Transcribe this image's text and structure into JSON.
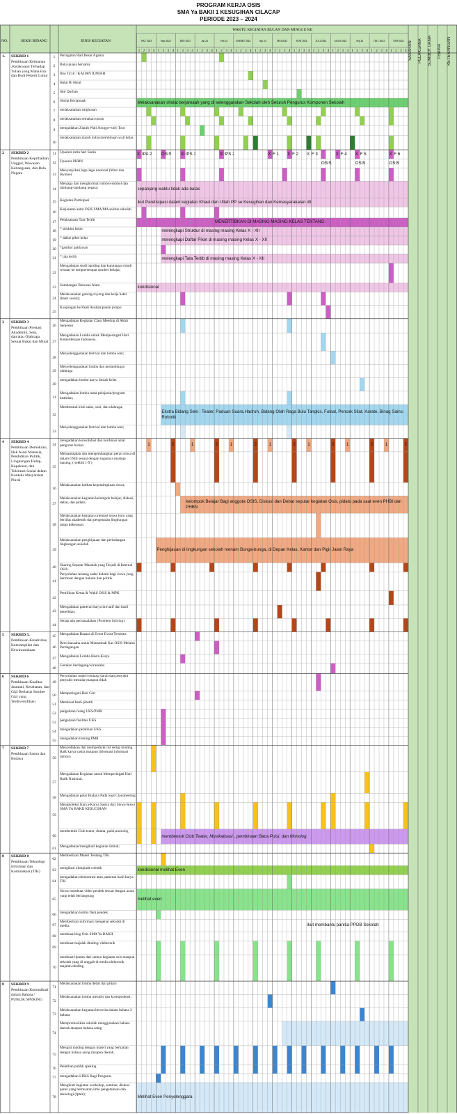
{
  "title": {
    "line1": "PROGRAM KERJA OSIS",
    "line2": "SMA Ya BAKII 1 KESUGIHAN CILACAP",
    "line3": "PERIODE 2023 – 2024"
  },
  "headers": {
    "no": "NO.",
    "seksi": "SEKSI BIDANG",
    "kegiatan": "JENIS KEGIATAN",
    "waktu": "WAKTU KEGIATAN BULAN DAN MINGGU KE",
    "right": [
      "SASARAN",
      "PELAKSANA",
      "SUMBER DANA",
      "TEMPAT",
      "KETERANGAN"
    ]
  },
  "months": [
    "OKT 2023",
    "Sept 2023",
    "DES 2023",
    "Jan 24",
    "Feb 24",
    "MARET 2024",
    "Apr 24",
    "MEI 2024",
    "JUNI 2024",
    "JULI 2024",
    "AGUS 2024",
    "Sep 24",
    "OKT 2024",
    "NOP 2024"
  ],
  "week_numbers": [
    "1",
    "2",
    "3",
    "4"
  ],
  "sections": [
    {
      "no": "1.",
      "code": "SEKBID 1",
      "desc": "Pembinaan Keimanan ,Ketakwaan Terhadap Tuhan yang Maha Esa dan Budi Pekerti Luhur"
    },
    {
      "no": "2",
      "code": "SEKBID 2",
      "desc": "Pembinaan Kepribadian Unggul, Wawasan Kebangsaan, dan Bela Negara"
    },
    {
      "no": "3",
      "code": "SEKBID 3",
      "desc": "Pembinaan Prestasi Akademik, Seni, dan/atau Olahraga Sesuai Bakat dan Minat"
    },
    {
      "no": "4",
      "code": "SEKBID 4",
      "desc": "Pembinaan Demokrasi, Hak Asasi Manusia, Pendidikan Politik, Lingkungan Hidup, Kepekaan, dan Toleransi Sosial dalam Konteks Masyarakat Plural"
    },
    {
      "no": "5",
      "code": "SEKBID 5.",
      "desc": "Pembinaan Kreativitas, Keterampilan dan Kewirausahaan"
    },
    {
      "no": "6",
      "code": "SEKBID 6",
      "desc": "Pembinaan Kualitas Jasmani, Kesehatan, dan Gizi Berbasis Sumber Gizi yang Terdiversifikasi"
    },
    {
      "no": "7",
      "code": "SEKBID 7",
      "desc": "Pembinaan Sastra dan Budaya"
    },
    {
      "no": "8",
      "code": "SEKBID 8",
      "desc": "Pembinaan Teknologi Informasi dan Komunikasi (TIK)"
    },
    {
      "no": "8",
      "code": "SEKBID 9",
      "desc": "Pembinaan Komunikasi dalam Bahasa / PUBLIK SPEKING"
    }
  ],
  "activities": [
    {
      "no": "1",
      "text": "Peringatan Hari Besar Agama"
    },
    {
      "no": "2",
      "text": "Buka puasa bersama"
    },
    {
      "no": "3",
      "text": "Ibas Ta'zil / KAJIAN ILMIAH"
    },
    {
      "no": "4",
      "text": "Halal Bi Halal"
    },
    {
      "no": "5",
      "text": "Idul Qurban"
    },
    {
      "no": "6",
      "text": "Sholat Berjamaah"
    },
    {
      "no": "7",
      "text": "melaksanakan istighosah"
    },
    {
      "no": "8",
      "text": "melaksanakan semakan quran"
    },
    {
      "no": "9",
      "text": "mengadakan Ziarah Wali Songgo+stdy Tour"
    },
    {
      "no": "10",
      "text": "melaksanakan ziaroh kubur/pembinaan wali kelas"
    },
    {
      "no": "11",
      "text": "Upacara rutin hari Senin"
    },
    {
      "no": "12",
      "text": "Upacara PHBN"
    },
    {
      "no": "13",
      "text": "Menyanyikan lagu-lagu nasional (Mars dan Hymne)"
    },
    {
      "no": "14",
      "text": "Menjaga dan menghormati simbol-simbol dan lambang-lambang negara;"
    },
    {
      "no": "15",
      "text": "Kegiatan Partisipasi"
    },
    {
      "no": "16",
      "text": "Kerjasama antar OSIS SMA/MA sekitar sekolah"
    },
    {
      "no": "17",
      "text": "Pelaksanaan Tata Tertib"
    },
    {
      "no": "18",
      "text": "*  struktur kelas"
    },
    {
      "no": "19",
      "text": "* daftar piket kelas"
    },
    {
      "no": "20",
      "text": "*gambar pahlawan"
    },
    {
      "no": "21",
      "text": "* tata tertib"
    },
    {
      "no": "22",
      "text": "Mengadakan studi banding dan kunjungan (studi wisata) ke tempat-tempat sumber belajar;"
    },
    {
      "no": "23",
      "text": "Sumbangan Bencana Alam"
    },
    {
      "no": "24",
      "text": "Melaksanakan gotong-royong dan kerja bakti (bakti sosial);"
    },
    {
      "no": "25",
      "text": "Kunjungan ke Panti Asuhan/pantai jompo"
    },
    {
      "no": "26",
      "text": "Mengadakan Kegiatan Class Meeting di Akhir Semester"
    },
    {
      "no": "27",
      "text": "Mengadakan Lomba untuk Memperingati Hari Kemerdekaan Indonesia."
    },
    {
      "no": "28",
      "text": "Menyelenggarakan festival dan lomba seni;"
    },
    {
      "no": "29",
      "text": "Menyelenggarakan lomba dan pertandingan olahraga"
    },
    {
      "no": "30",
      "text": "mengadakan lomba karya ilmiah kelas"
    },
    {
      "no": "31",
      "text": "Mengadakan lomba mata pelajaran/program keahlian;"
    },
    {
      "no": "32",
      "text": "Membentuk klub sains, seni, dan olahraga;"
    },
    {
      "no": "33",
      "text": "Menyelenggarakan festival dan lomba seni;"
    },
    {
      "no": "34",
      "text": "mengadakan konsolidasi dan kordinasi antar pengurus harian"
    },
    {
      "no": "35",
      "text": "Memantapkan dan mengembangkan peran siswa di dalam OSIS sesuai dengan tugasnya masing-masing; ( sekbid 1-9 )"
    },
    {
      "no": "36",
      "text": "Melaksanakan latihan kepemimpinan siswa;"
    },
    {
      "no": "37",
      "text": "Melaksanakan kegiatan kelompok belajar, diskusi, debat, dan pidato;"
    },
    {
      "no": "38",
      "text": "Melaksanakan kegiatan orientasi siswa baru yang bersifat akademik dan pengenalan lingkungan tanpa kekerasan"
    },
    {
      "no": "39",
      "text": "Melaksanakan penghijauan dan perindangan lingkungan sekolah"
    },
    {
      "no": "40",
      "text": "Sharing Seputar Masalah yang Terjadi di Internal OSIS."
    },
    {
      "no": "41",
      "text": "Penyuluhan tentang sadar hukum bagi siswa yang berminat dengan hukum dan politik"
    },
    {
      "no": "42",
      "text": "Pemilihan Ketua & Wakil OSIS  & MPK"
    },
    {
      "no": "43",
      "text": "Mengadakan pameran karya inovatif dan hasil penelitian;"
    },
    {
      "no": "44",
      "text": "Setiap ada  permasalahan (Problem Solving)"
    },
    {
      "no": "45",
      "text": "Mengadakan Bazaar di Event Event Tertentu."
    },
    {
      "no": "46",
      "text": "Berwirausaha untuk  Menambah Kas OSIS Melalui Perdagangan"
    },
    {
      "no": "47",
      "text": "Mengadakan Lomba Hasta  Karya"
    },
    {
      "no": "48",
      "text": "Gerakan berdagang/wirausaha"
    },
    {
      "no": "49",
      "text": "Penyuluhan materi tentang darah dan  penyakit penyakit menular maupun tidak"
    },
    {
      "no": "50",
      "text": "Memperingati  Hari Gizi"
    },
    {
      "no": "51",
      "text": "Membuat bank plastik"
    },
    {
      "no": "52",
      "text": "pengadaan  ruang UKS/PMR"
    },
    {
      "no": "53",
      "text": "pengadaan fasilitas UKS"
    },
    {
      "no": "54",
      "text": "mengadakan pelatihan UKS"
    },
    {
      "no": "55",
      "text": "mengadakan trening PMR"
    },
    {
      "no": "56",
      "text": "Menyediakan dan memperbaiki isi setiap mading. Baik karya sastra maupun informasi informasi lainnya"
    },
    {
      "no": "57",
      "text": "Mengadakan Kegiatan untuk Memperingati Hari Batik Nasional."
    },
    {
      "no": "58",
      "text": "Mengadakan gelar Budaya  Pada Saat  Classmeeting"
    },
    {
      "no": "59",
      "text": "Mengkoleksi Karya-Karya Sastra dari Siswa-Siswi SMA YA BAKII KESUGIHAN"
    },
    {
      "no": "60",
      "text": "membentuk Club teater, drama, puisi,monolog"
    },
    {
      "no": "61",
      "text": "Mengadakan/mengikuti kegiatan ilmiah;"
    },
    {
      "no": "62",
      "text": "Memberikan Materi Tentang TIK."
    },
    {
      "no": "63",
      "text": "mengikuti olimpiade robotik"
    },
    {
      "no": "64",
      "text": "mengadakan demontrasi atau pameran  hasil karya TIK"
    },
    {
      "no": "65",
      "text": "Siswa membuat video pendek sesuai dengan acara yang telah berlangsung"
    },
    {
      "no": "66",
      "text": "mengadakan lomba flem pendek"
    },
    {
      "no": "67",
      "text": "Memberikan informasi mengenai sekolah di media."
    },
    {
      "no": "68",
      "text": "membuat blog Osis SMA Ya BAKII"
    },
    {
      "no": "69",
      "text": "membuat majalah dinding/ elektronik"
    },
    {
      "no": "70",
      "text": "membuat liputan dari semua kegiatan osis maupun sekolah yang di unggah di media  elektronik majalah dinding"
    },
    {
      "no": "71",
      "text": "Melaksanakan lomba debat dan pidato"
    },
    {
      "no": "72",
      "text": "Melaksanakan lomba menulis dan korespodensi;"
    },
    {
      "no": "73",
      "text": "Melaksanakan kegiatan bercerita dalam bahasa 3 bahasa"
    },
    {
      "no": "74",
      "text": "Mempromosikan sekolah menggunakan bahasa daerah ataupun bahasa asing"
    },
    {
      "no": "75",
      "text": "Mengisi mading dengan materi yang berkaitan dengan bahasa asing maupun daerah."
    },
    {
      "no": "76",
      "text": "Pelatihan publik speking"
    },
    {
      "no": "77",
      "text": "mengadakan LDKS Bagi Pengurus"
    },
    {
      "no": "78",
      "text": "Mengikuti kegiatan workshop, seminar, diskusi panel yang bermuatan ilmu pengetahuan dan teknologi (Iptek);"
    }
  ],
  "bar_labels": {
    "sholat": "Melaksanakan sholat berjamaah yang di selenggarakan Sekolah oleh Seluruh Pengurus Komponen Sekolah",
    "simbol": "sepanjang waktu tidak ada batas",
    "partisipasi": "ikut Paretisipasi  dalam kegiatan Khaul dan Ultah PP se Kesugihan dan Kemasyarakatan dll",
    "tatib": "MENERTIBKAN DI MASING MASING KELAS TENTANG :",
    "struktur": "melengkapi Struktur di masing masing  Kelas X - XII",
    "piket": "melengkapi Daftar Piket di masing masing  Kelas X - XII",
    "tatatertib": "melengkapi Tata Tertib  di masing masing  Kelas X - XII",
    "bencana": "kondisional",
    "klub": "Ekstra Bidang Seni : Teater, Paduan Suara,Hadroh, Bidang Olah Raga Bulu Tangkis, Futsal, Pencak Silat, Karate, Binag Sains: Robotik",
    "kelompok": "kelompok Belajar Bagi anggota OSIS, Diskusi dan Debat  seputar kegiatan Osis, pidato pada saat even PHBI dan PHBN",
    "hijau": "Penghijauan di lingkungan sekolah menam Bunga-bunga, di Depan Kelas, Kantor dan Pigir Jalan Raya",
    "teater": "membentuk Club Teater, Musikalisasi , pembinaan Baca Puisi, dan Monolog",
    "robotik": "kondisional melihat Even",
    "video": "melihat even",
    "ppdb": "ikut membantu panitia PPDB Sekolah",
    "workshop": "Melihat Even Penyelenggara"
  },
  "upacara_labels": [
    "X",
    "IPA 2",
    "OSIS",
    "XI",
    "IPS 1",
    "XI",
    "IPS 2",
    "X",
    "F 1",
    "X",
    "F 2",
    "X",
    "F 3",
    "X",
    "F 4",
    "X",
    "F 5",
    "X",
    "F 6"
  ],
  "phbn_label": "OSIS",
  "konsolidasi_numbers": [
    "1",
    "2",
    "1",
    "2",
    "1",
    "2",
    "1",
    "2",
    "1",
    "2",
    "1",
    "2",
    "1",
    "2"
  ],
  "colors": {
    "header_green": "#c6e3b8",
    "green": "#92d050",
    "mid_green": "#6ccf70",
    "dark_green": "#2e7d32",
    "pink": "#f0c6e6",
    "magenta": "#cc5fc4",
    "light_blue": "#a3d7ef",
    "pale_blue": "#d4e8f7",
    "salmon": "#f0a982",
    "rust": "#b3471a",
    "gold": "#f7c21d",
    "violet": "#cc99ee",
    "blue": "#3d86cf",
    "mint": "#89e38c"
  }
}
